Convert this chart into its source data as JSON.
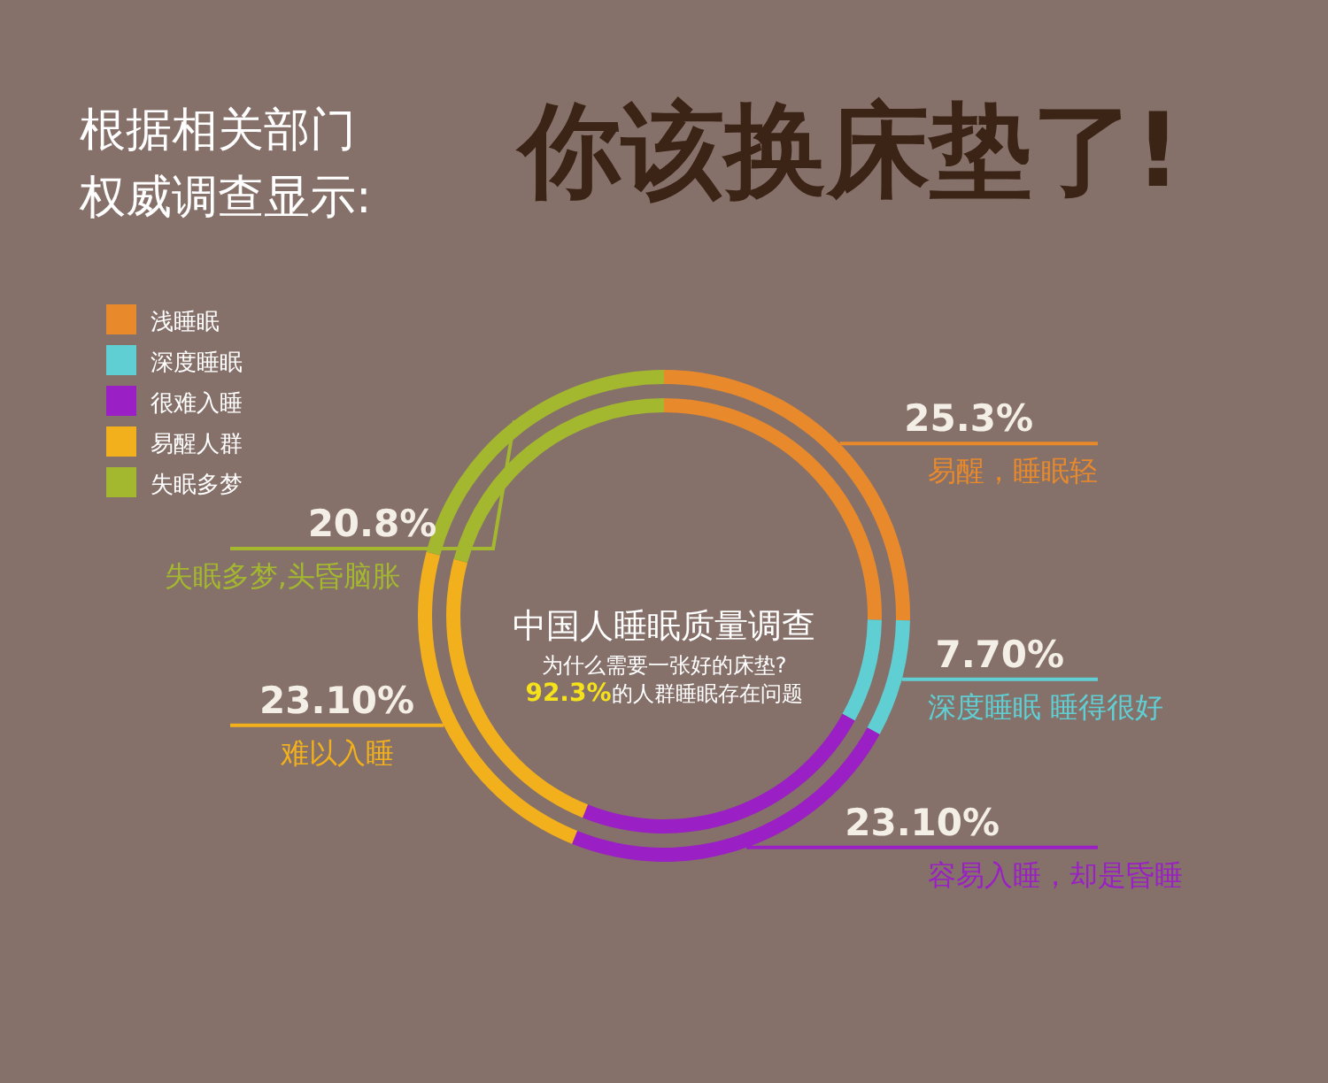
{
  "chart_data": {
    "type": "donut",
    "title": "你该换床垫了!",
    "subtitle": "根据相关部门权威调查显示:",
    "categories": [
      "浅睡眠",
      "深度睡眠",
      "很难入睡",
      "易醒人群",
      "失眠多梦"
    ],
    "series": [
      {
        "values": [
          25.3,
          7.7,
          23.1,
          23.1,
          20.8
        ]
      },
      {
        "values": [
          25.3,
          7.7,
          23.1,
          23.1,
          20.8
        ]
      }
    ],
    "colors": [
      "#e8892c",
      "#5fcfd3",
      "#9a1fc4",
      "#f2b01c",
      "#a3b82e"
    ],
    "value_labels": [
      "25.3%",
      "7.70%",
      "23.10%",
      "23.10%",
      "20.8%"
    ],
    "legend": "top left",
    "annotations": [
      "易醒，睡眠轻",
      "深度睡眠 睡得很好",
      "容易入睡，却是昏睡",
      "难以入睡",
      "失眠多梦,头昏脑胀",
      "中国人睡眠质量调查",
      "为什么需要一张好的床垫?",
      "92.3%的人群睡眠存在问题"
    ]
  }
}
